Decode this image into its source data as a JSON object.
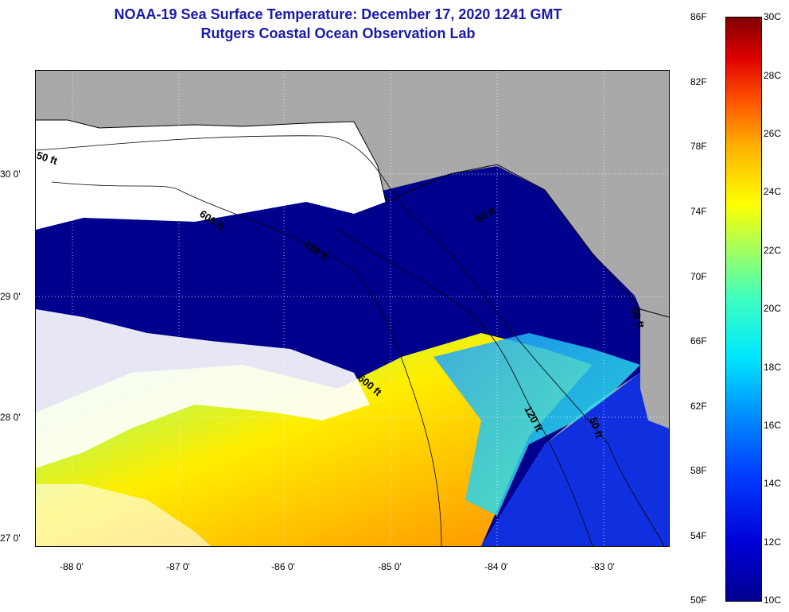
{
  "title": {
    "line1": "NOAA-19 Sea Surface Temperature:  December 17, 2020 1241 GMT",
    "line2": "Rutgers Coastal Ocean Observation Lab"
  },
  "map": {
    "lat_ticks": [
      "30 0'",
      "29 0'",
      "28 0'",
      "27 0'"
    ],
    "lon_ticks": [
      "-88 0'",
      "-87 0'",
      "-86 0'",
      "-85 0'",
      "-84 0'",
      "-83 0'"
    ],
    "contour_labels": [
      "50 ft",
      "600 ft",
      "120 ft",
      "50 ft",
      "600 ft",
      "120 ft",
      "50 ft",
      "50 ft"
    ],
    "colors": {
      "land": "#a9a9a9",
      "cloud": "#ffffff",
      "cold": "#00008f"
    }
  },
  "colorbar": {
    "f_labels": [
      "86F",
      "82F",
      "78F",
      "74F",
      "70F",
      "66F",
      "62F",
      "58F",
      "54F",
      "50F"
    ],
    "c_labels": [
      "30C",
      "28C",
      "26C",
      "24C",
      "22C",
      "20C",
      "18C",
      "16C",
      "14C",
      "12C",
      "10C"
    ]
  }
}
